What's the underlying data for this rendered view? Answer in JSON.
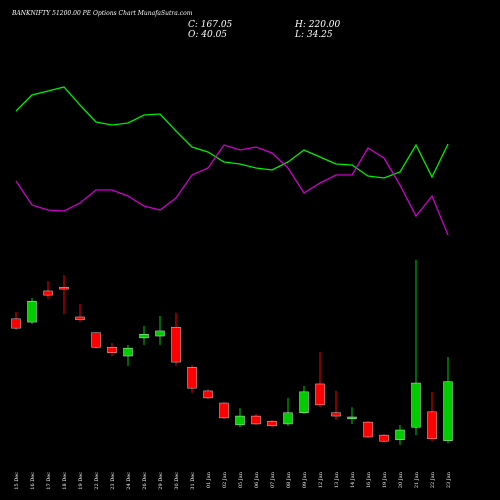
{
  "chart_data": {
    "type": "candlestick",
    "title": "BANKNIFTY 51200.00 PE Options  Chart MunafaSutra.com",
    "stats": [
      "C: 167.05",
      "H: 220.00",
      "O: 40.05",
      "L: 34.25"
    ],
    "categories": [
      "15 Dec",
      "16 Dec",
      "17 Dec",
      "18 Dec",
      "19 Dec",
      "22 Dec",
      "23 Dec",
      "24 Dec",
      "26 Dec",
      "29 Dec",
      "30 Dec",
      "31 Dec",
      "01 Jan",
      "02 Jan",
      "05 Jan",
      "06 Jan",
      "07 Jan",
      "08 Jan",
      "09 Jan",
      "12 Jan",
      "13 Jan",
      "14 Jan",
      "16 Jan",
      "19 Jan",
      "20 Jan",
      "21 Jan",
      "22 Jan",
      "23 Jan"
    ],
    "open": [
      302,
      295,
      362,
      370,
      306,
      272,
      241,
      222,
      261,
      265,
      284,
      198,
      147,
      121,
      74,
      93,
      82,
      76,
      100,
      162,
      100,
      87,
      80,
      52,
      42,
      69,
      102,
      40.05
    ],
    "close": [
      282,
      340,
      353,
      366,
      300,
      241,
      229,
      239,
      269,
      276,
      209,
      153,
      132,
      89,
      93,
      76,
      72,
      100,
      145,
      117,
      93,
      91,
      48,
      39,
      63,
      164,
      44,
      167.05
    ],
    "high": [
      317,
      347,
      383,
      396,
      334,
      272,
      250,
      246,
      287,
      308,
      315,
      203,
      151,
      123,
      110,
      97,
      85,
      132,
      158,
      231,
      147,
      112,
      82,
      54,
      74,
      429,
      145,
      220
    ],
    "low": [
      278,
      291,
      345,
      312,
      295,
      239,
      222,
      201,
      246,
      246,
      201,
      143,
      130,
      87,
      69,
      74,
      69,
      72,
      97,
      112,
      85,
      76,
      46,
      37,
      31,
      52,
      39,
      34.25
    ],
    "ylim": [
      20,
      450
    ],
    "up_color": "#00cc00",
    "down_color": "#ff0000",
    "lines": [
      {
        "color": "#00ee00",
        "values": [
          149,
          165,
          169,
          173,
          155,
          138,
          135,
          137,
          145,
          146,
          129,
          113,
          108,
          98,
          96,
          92,
          90,
          98,
          110,
          103,
          96,
          95,
          84,
          82,
          88,
          115,
          83,
          116
        ]
      },
      {
        "color": "#cc00cc",
        "values": [
          79,
          55,
          50,
          49,
          57,
          70,
          70,
          64,
          54,
          50,
          62,
          85,
          92,
          115,
          110,
          113,
          107,
          92,
          67,
          77,
          85,
          85,
          112,
          102,
          75,
          44,
          64,
          25
        ]
      }
    ],
    "lines_ylim": [
      0,
      200
    ]
  }
}
